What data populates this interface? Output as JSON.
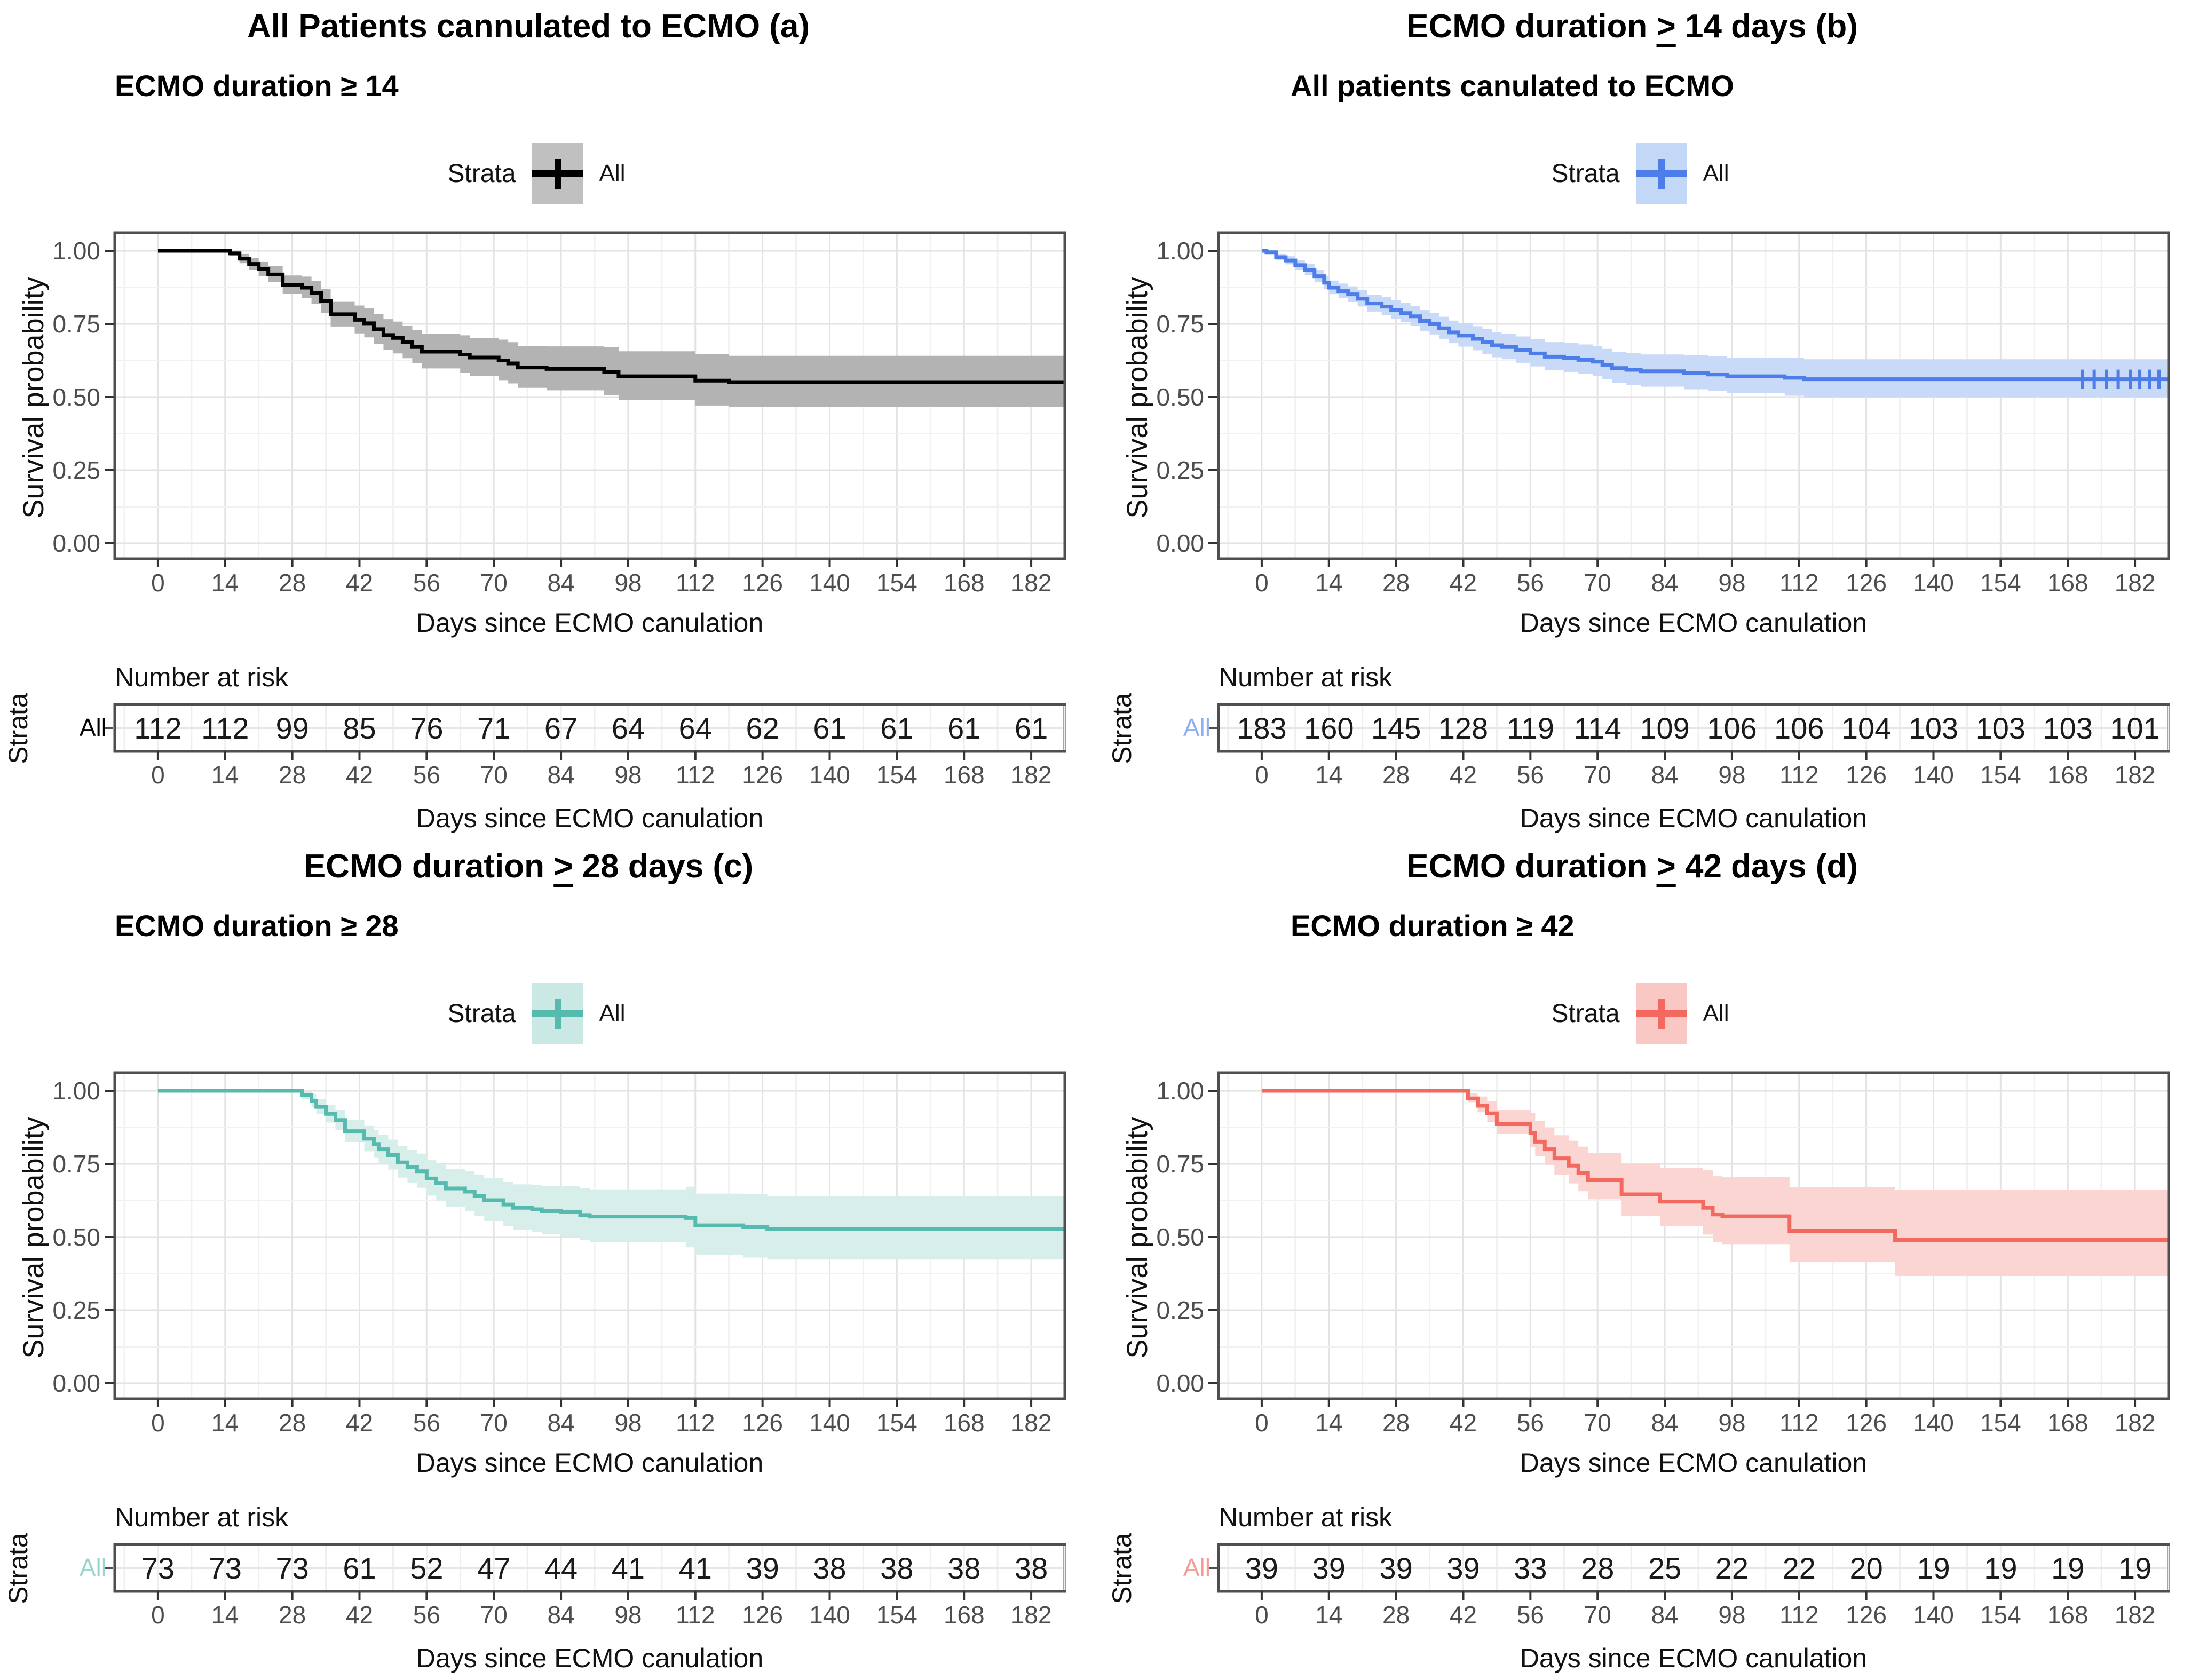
{
  "figure": {
    "kind": "Kaplan-Meier survival curves, 2x2 panel figure",
    "background": "#ffffff",
    "border_color": "#4F4F4F",
    "grid_major_color": "#E3E3E3",
    "grid_minor_color": "#F1F1F1",
    "tick_text_color": "#4D4D4D"
  },
  "chart_data": [
    {
      "id": "a",
      "type": "line",
      "title": {
        "pre": "All Patients cannulated to ECMO (a)",
        "geq": "",
        "post": ""
      },
      "subtitle": "ECMO duration ≥ 14",
      "legend": {
        "label": "Strata",
        "item": "All"
      },
      "xlabel": "Days since ECMO canulation",
      "ylabel": "Survival probability",
      "risk_header": "Number at risk",
      "strata_label": "Strata",
      "risk_row_label": "All",
      "x_ticks": [
        0,
        14,
        28,
        42,
        56,
        70,
        84,
        98,
        112,
        126,
        140,
        154,
        168,
        182
      ],
      "y_ticks": [
        {
          "v": 1.0,
          "label": "1.00"
        },
        {
          "v": 0.75,
          "label": "0.75"
        },
        {
          "v": 0.5,
          "label": "0.50"
        },
        {
          "v": 0.25,
          "label": "0.25"
        },
        {
          "v": 0.0,
          "label": "0.00"
        }
      ],
      "xlim": [
        -9,
        189
      ],
      "ylim": [
        0,
        1
      ],
      "risk_counts": [
        112,
        112,
        99,
        85,
        76,
        71,
        67,
        64,
        64,
        62,
        61,
        61,
        61,
        61
      ],
      "survival_steps": [
        [
          0,
          1.0
        ],
        [
          14,
          1.0
        ],
        [
          15,
          0.991
        ],
        [
          17,
          0.973
        ],
        [
          19,
          0.955
        ],
        [
          21,
          0.937
        ],
        [
          23,
          0.919
        ],
        [
          26,
          0.883
        ],
        [
          30,
          0.874
        ],
        [
          32,
          0.856
        ],
        [
          34,
          0.828
        ],
        [
          36,
          0.783
        ],
        [
          41,
          0.764
        ],
        [
          43,
          0.752
        ],
        [
          45,
          0.732
        ],
        [
          47,
          0.712
        ],
        [
          49,
          0.702
        ],
        [
          51,
          0.687
        ],
        [
          53,
          0.671
        ],
        [
          55,
          0.655
        ],
        [
          63,
          0.645
        ],
        [
          65,
          0.635
        ],
        [
          71,
          0.625
        ],
        [
          73,
          0.615
        ],
        [
          75,
          0.601
        ],
        [
          81,
          0.596
        ],
        [
          93,
          0.586
        ],
        [
          96,
          0.571
        ],
        [
          112,
          0.556
        ],
        [
          119,
          0.551
        ]
      ],
      "ci": {
        "start_day": 14,
        "full_day": 105,
        "upper_width": 0.09,
        "lower_width": 0.085
      },
      "censor_days": [],
      "censor_y": null,
      "colors": {
        "line": "#000000",
        "band": "#B3B3B3",
        "key_bg": "#C0C0C0",
        "risk_label": "#000000"
      }
    },
    {
      "id": "b",
      "type": "line",
      "title": {
        "pre": "ECMO duration ",
        "geq": ">",
        "post": " 14 days (b)"
      },
      "subtitle": "All patients canulated to ECMO",
      "legend": {
        "label": "Strata",
        "item": "All"
      },
      "xlabel": "Days since ECMO canulation",
      "ylabel": "Survival probability",
      "risk_header": "Number at risk",
      "strata_label": "Strata",
      "risk_row_label": "All",
      "x_ticks": [
        0,
        14,
        28,
        42,
        56,
        70,
        84,
        98,
        112,
        126,
        140,
        154,
        168,
        182
      ],
      "y_ticks": [
        {
          "v": 1.0,
          "label": "1.00"
        },
        {
          "v": 0.75,
          "label": "0.75"
        },
        {
          "v": 0.5,
          "label": "0.50"
        },
        {
          "v": 0.25,
          "label": "0.25"
        },
        {
          "v": 0.0,
          "label": "0.00"
        }
      ],
      "xlim": [
        -9,
        189
      ],
      "ylim": [
        0,
        1
      ],
      "risk_counts": [
        183,
        160,
        145,
        128,
        119,
        114,
        109,
        106,
        106,
        104,
        103,
        103,
        103,
        101
      ],
      "survival_steps": [
        [
          0,
          1.0
        ],
        [
          1,
          0.995
        ],
        [
          3,
          0.978
        ],
        [
          5,
          0.967
        ],
        [
          7,
          0.951
        ],
        [
          9,
          0.935
        ],
        [
          11,
          0.913
        ],
        [
          13,
          0.891
        ],
        [
          14,
          0.874
        ],
        [
          16,
          0.862
        ],
        [
          18,
          0.851
        ],
        [
          20,
          0.836
        ],
        [
          22,
          0.82
        ],
        [
          25,
          0.809
        ],
        [
          27,
          0.798
        ],
        [
          29,
          0.787
        ],
        [
          31,
          0.776
        ],
        [
          33,
          0.76
        ],
        [
          35,
          0.749
        ],
        [
          37,
          0.735
        ],
        [
          39,
          0.721
        ],
        [
          41,
          0.71
        ],
        [
          44,
          0.699
        ],
        [
          46,
          0.688
        ],
        [
          48,
          0.677
        ],
        [
          50,
          0.671
        ],
        [
          53,
          0.66
        ],
        [
          56,
          0.649
        ],
        [
          59,
          0.638
        ],
        [
          63,
          0.633
        ],
        [
          66,
          0.627
        ],
        [
          69,
          0.621
        ],
        [
          71,
          0.61
        ],
        [
          73,
          0.599
        ],
        [
          76,
          0.593
        ],
        [
          79,
          0.588
        ],
        [
          88,
          0.582
        ],
        [
          93,
          0.577
        ],
        [
          97,
          0.571
        ],
        [
          109,
          0.566
        ],
        [
          113,
          0.561
        ]
      ],
      "ci": {
        "start_day": 0,
        "full_day": 110,
        "upper_width": 0.068,
        "lower_width": 0.062
      },
      "censor_days": [
        171,
        173.5,
        176,
        178.5,
        181,
        183,
        185,
        187
      ],
      "censor_y": 0.561,
      "colors": {
        "line": "#4C7DE8",
        "band": "#C9DAF8",
        "key_bg": "#C3D7F7",
        "risk_label": "#8FAFF2"
      }
    },
    {
      "id": "c",
      "type": "line",
      "title": {
        "pre": "ECMO duration ",
        "geq": ">",
        "post": " 28 days (c)"
      },
      "subtitle": "ECMO duration ≥ 28",
      "legend": {
        "label": "Strata",
        "item": "All"
      },
      "xlabel": "Days since ECMO canulation",
      "ylabel": "Survival probability",
      "risk_header": "Number at risk",
      "strata_label": "Strata",
      "risk_row_label": "All",
      "x_ticks": [
        0,
        14,
        28,
        42,
        56,
        70,
        84,
        98,
        112,
        126,
        140,
        154,
        168,
        182
      ],
      "y_ticks": [
        {
          "v": 1.0,
          "label": "1.00"
        },
        {
          "v": 0.75,
          "label": "0.75"
        },
        {
          "v": 0.5,
          "label": "0.50"
        },
        {
          "v": 0.25,
          "label": "0.25"
        },
        {
          "v": 0.0,
          "label": "0.00"
        }
      ],
      "xlim": [
        -9,
        189
      ],
      "ylim": [
        0,
        1
      ],
      "risk_counts": [
        73,
        73,
        73,
        61,
        52,
        47,
        44,
        41,
        41,
        39,
        38,
        38,
        38,
        38
      ],
      "survival_steps": [
        [
          0,
          1.0
        ],
        [
          28,
          1.0
        ],
        [
          30,
          0.986
        ],
        [
          32,
          0.966
        ],
        [
          33,
          0.945
        ],
        [
          35,
          0.921
        ],
        [
          37,
          0.9
        ],
        [
          39,
          0.862
        ],
        [
          43,
          0.836
        ],
        [
          45,
          0.818
        ],
        [
          46,
          0.8
        ],
        [
          48,
          0.78
        ],
        [
          50,
          0.755
        ],
        [
          52,
          0.74
        ],
        [
          54,
          0.725
        ],
        [
          56,
          0.7
        ],
        [
          58,
          0.685
        ],
        [
          60,
          0.666
        ],
        [
          64,
          0.655
        ],
        [
          66,
          0.641
        ],
        [
          68,
          0.626
        ],
        [
          72,
          0.611
        ],
        [
          74,
          0.6
        ],
        [
          78,
          0.595
        ],
        [
          80,
          0.59
        ],
        [
          84,
          0.585
        ],
        [
          88,
          0.575
        ],
        [
          90,
          0.57
        ],
        [
          110,
          0.565
        ],
        [
          112,
          0.54
        ],
        [
          122,
          0.535
        ],
        [
          127,
          0.528
        ]
      ],
      "ci": {
        "start_day": 28,
        "full_day": 118,
        "upper_width": 0.112,
        "lower_width": 0.105
      },
      "censor_days": [],
      "censor_y": null,
      "colors": {
        "line": "#56BAAE",
        "band": "#D8EEEA",
        "key_bg": "#CBE9E4",
        "risk_label": "#9AD5CC"
      }
    },
    {
      "id": "d",
      "type": "line",
      "title": {
        "pre": "ECMO duration ",
        "geq": ">",
        "post": " 42 days (d)"
      },
      "subtitle": "ECMO duration ≥ 42",
      "legend": {
        "label": "Strata",
        "item": "All"
      },
      "xlabel": "Days since ECMO canulation",
      "ylabel": "Survival probability",
      "risk_header": "Number at risk",
      "strata_label": "Strata",
      "risk_row_label": "All",
      "x_ticks": [
        0,
        14,
        28,
        42,
        56,
        70,
        84,
        98,
        112,
        126,
        140,
        154,
        168,
        182
      ],
      "y_ticks": [
        {
          "v": 1.0,
          "label": "1.00"
        },
        {
          "v": 0.75,
          "label": "0.75"
        },
        {
          "v": 0.5,
          "label": "0.50"
        },
        {
          "v": 0.25,
          "label": "0.25"
        },
        {
          "v": 0.0,
          "label": "0.00"
        }
      ],
      "xlim": [
        -9,
        189
      ],
      "ylim": [
        0,
        1
      ],
      "risk_counts": [
        39,
        39,
        39,
        39,
        33,
        28,
        25,
        22,
        22,
        20,
        19,
        19,
        19,
        19
      ],
      "survival_steps": [
        [
          0,
          1.0
        ],
        [
          42,
          1.0
        ],
        [
          43,
          0.974
        ],
        [
          45,
          0.949
        ],
        [
          47,
          0.923
        ],
        [
          49,
          0.887
        ],
        [
          56,
          0.856
        ],
        [
          57,
          0.826
        ],
        [
          59,
          0.8
        ],
        [
          61,
          0.769
        ],
        [
          64,
          0.744
        ],
        [
          66,
          0.72
        ],
        [
          68,
          0.695
        ],
        [
          75,
          0.646
        ],
        [
          83,
          0.621
        ],
        [
          92,
          0.6
        ],
        [
          94,
          0.577
        ],
        [
          96,
          0.571
        ],
        [
          110,
          0.521
        ],
        [
          132,
          0.49
        ]
      ],
      "ci": {
        "start_day": 42,
        "full_day": 135,
        "upper_width": 0.175,
        "lower_width": 0.125
      },
      "censor_days": [],
      "censor_y": null,
      "colors": {
        "line": "#F4695F",
        "band": "#FAD5D2",
        "key_bg": "#F9C8C5",
        "risk_label": "#F59B95"
      }
    }
  ]
}
